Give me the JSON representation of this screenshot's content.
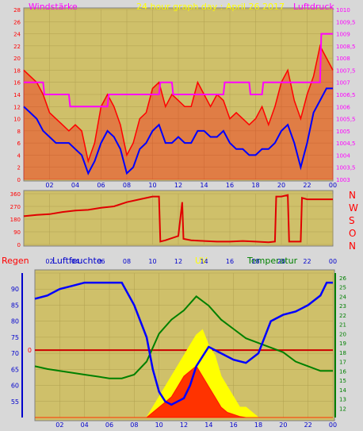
{
  "header": {
    "left_label": "Windstärke",
    "center_label": "24 hour graph day : April 26 2017",
    "right_label": "Luftdruck"
  },
  "compass": {
    "letters": [
      "N",
      "W",
      "S",
      "O",
      "N"
    ]
  },
  "bottom_header": {
    "rain": "Regen",
    "humidity": "Luftfeuchte",
    "uv": "UV",
    "temperature": "Temperatur"
  },
  "colors": {
    "panel": "#c8b860",
    "wind_gust": "#ff0000",
    "wind_avg": "#0000ff",
    "pressure": "#ff00ff",
    "direction": "#e00000",
    "humidity": "#0000ff",
    "temperature": "#008000",
    "uv": "#ffff00",
    "rain": "#ff0000",
    "rain_zero_line": "#cc0000"
  },
  "chart_data": [
    {
      "type": "line",
      "title": "24 hour graph day : April 26 2017",
      "ylabel": "Windstärke",
      "y2label": "Luftdruck",
      "ylim": [
        0,
        28
      ],
      "y_ticks": [
        "0",
        "2",
        "4",
        "6",
        "8",
        "10",
        "12",
        "14",
        "16",
        "18",
        "20",
        "22",
        "24",
        "26",
        "28"
      ],
      "y2lim": [
        1003,
        1010
      ],
      "y2_ticks": [
        "1003",
        "1003,5",
        "1004",
        "1004,5",
        "1005",
        "1005,5",
        "1006",
        "1006,5",
        "1007",
        "1007,5",
        "1008",
        "1008,5",
        "1009",
        "1009,5",
        "1010"
      ],
      "x_ticks": [
        "02",
        "04",
        "06",
        "08",
        "10",
        "12",
        "14",
        "16",
        "18",
        "20",
        "22",
        "00"
      ],
      "series": [
        {
          "name": "Windstärke",
          "style": "gust",
          "x": [
            0,
            0.5,
            1,
            1.5,
            2,
            2.5,
            3,
            3.5,
            4,
            4.5,
            5,
            5.5,
            6,
            6.5,
            7,
            7.5,
            8,
            8.5,
            9,
            9.5,
            10,
            10.5,
            11,
            11.5,
            12,
            12.5,
            13,
            13.5,
            14,
            14.5,
            15,
            15.5,
            16,
            16.5,
            17,
            17.5,
            18,
            18.5,
            19,
            19.5,
            20,
            20.5,
            21,
            21.5,
            22,
            22.5,
            23,
            23.5,
            24
          ],
          "values": [
            18,
            17,
            16,
            14,
            11,
            10,
            9,
            8,
            9,
            8,
            3,
            6,
            12,
            14,
            12,
            9,
            4,
            6,
            10,
            11,
            15,
            16,
            12,
            14,
            13,
            12,
            12,
            16,
            14,
            12,
            14,
            13,
            10,
            11,
            10,
            9,
            10,
            12,
            9,
            12,
            16,
            18,
            13,
            10,
            14,
            17,
            22,
            20,
            18
          ]
        },
        {
          "name": "Windstärke Mittel",
          "style": "avg",
          "x": [
            0,
            0.5,
            1,
            1.5,
            2,
            2.5,
            3,
            3.5,
            4,
            4.5,
            5,
            5.5,
            6,
            6.5,
            7,
            7.5,
            8,
            8.5,
            9,
            9.5,
            10,
            10.5,
            11,
            11.5,
            12,
            12.5,
            13,
            13.5,
            14,
            14.5,
            15,
            15.5,
            16,
            16.5,
            17,
            17.5,
            18,
            18.5,
            19,
            19.5,
            20,
            20.5,
            21,
            21.5,
            22,
            22.5,
            23,
            23.5,
            24
          ],
          "values": [
            12,
            11,
            10,
            8,
            7,
            6,
            6,
            6,
            5,
            4,
            1,
            3,
            6,
            8,
            7,
            5,
            1,
            2,
            5,
            6,
            8,
            9,
            6,
            6,
            7,
            6,
            6,
            8,
            8,
            7,
            7,
            8,
            6,
            5,
            5,
            4,
            4,
            5,
            5,
            6,
            8,
            9,
            6,
            2,
            6,
            11,
            13,
            15,
            15
          ]
        },
        {
          "name": "Luftdruck",
          "axis": "right",
          "x": [
            0,
            1.5,
            1.6,
            3.5,
            3.6,
            6.5,
            6.6,
            10.5,
            10.6,
            11.5,
            11.6,
            15.5,
            15.6,
            17.5,
            17.6,
            18.5,
            18.6,
            23,
            23.1,
            24
          ],
          "values": [
            1007,
            1007,
            1006.5,
            1006.5,
            1006,
            1006,
            1006.5,
            1006.5,
            1007,
            1007,
            1006.5,
            1006.5,
            1007,
            1007,
            1006.5,
            1006.5,
            1007,
            1007,
            1009,
            1009
          ]
        }
      ]
    },
    {
      "type": "line",
      "title": "",
      "ylabel": "",
      "ylim": [
        0,
        360
      ],
      "y_ticks": [
        "0",
        "90",
        "180",
        "270",
        "360"
      ],
      "x_ticks": [
        "02",
        "04",
        "06",
        "08",
        "10",
        "12",
        "14",
        "16",
        "18",
        "20",
        "22",
        "00"
      ],
      "series": [
        {
          "name": "Windrichtung",
          "x": [
            0,
            1,
            2,
            3,
            4,
            5,
            6,
            7,
            8,
            9,
            10,
            10.5,
            10.6,
            11,
            12,
            12.3,
            12.4,
            13,
            14,
            15,
            16,
            17,
            18,
            19,
            19.5,
            19.6,
            20,
            20.5,
            20.6,
            21,
            21.5,
            21.6,
            22,
            23,
            24
          ],
          "values": [
            200,
            210,
            215,
            230,
            240,
            245,
            260,
            270,
            300,
            320,
            340,
            340,
            20,
            30,
            60,
            300,
            40,
            30,
            25,
            20,
            20,
            25,
            20,
            15,
            20,
            340,
            340,
            350,
            20,
            20,
            20,
            330,
            320,
            320,
            320
          ]
        }
      ]
    },
    {
      "type": "line",
      "title": "",
      "ylabel": "Luftfeuchte",
      "y2label": "Temperatur",
      "ylim": [
        50,
        95
      ],
      "y_ticks": [
        "55",
        "60",
        "65",
        "70",
        "75",
        "80",
        "85",
        "90"
      ],
      "y2lim": [
        11,
        26.5
      ],
      "y2_ticks": [
        "12",
        "13",
        "14",
        "15",
        "16",
        "17",
        "18",
        "19",
        "20",
        "21",
        "22",
        "23",
        "24",
        "25",
        "26"
      ],
      "rain_ticks": [
        "0"
      ],
      "x_ticks": [
        "02",
        "04",
        "06",
        "08",
        "10",
        "12",
        "14",
        "16",
        "18",
        "20",
        "22",
        "00"
      ],
      "series": [
        {
          "name": "Luftfeuchte",
          "axis": "left",
          "x": [
            0,
            1,
            2,
            3,
            4,
            5,
            6,
            7,
            8,
            9,
            9.5,
            10,
            10.5,
            11,
            12,
            12.5,
            13,
            14,
            15,
            16,
            17,
            18,
            19,
            20,
            21,
            22,
            23,
            23.5,
            24
          ],
          "values": [
            87,
            88,
            90,
            91,
            92,
            92,
            92,
            92,
            85,
            75,
            65,
            58,
            55,
            54,
            56,
            60,
            66,
            72,
            70,
            68,
            67,
            70,
            80,
            82,
            83,
            85,
            88,
            92,
            92
          ]
        },
        {
          "name": "Temperatur",
          "axis": "right",
          "x": [
            0,
            1,
            2,
            3,
            4,
            5,
            6,
            7,
            8,
            9,
            10,
            11,
            12,
            13,
            14,
            15,
            16,
            17,
            18,
            19,
            20,
            21,
            22,
            23,
            24
          ],
          "values": [
            16.5,
            16.2,
            16,
            15.8,
            15.6,
            15.4,
            15.2,
            15.2,
            15.6,
            17,
            20,
            21.5,
            22.5,
            24,
            23,
            21.5,
            20.5,
            19.5,
            19,
            18.5,
            18,
            17,
            16.5,
            16,
            16
          ]
        },
        {
          "name": "UV",
          "x": [
            0,
            9,
            9.5,
            10,
            10.5,
            11,
            11.5,
            12,
            12.5,
            13,
            13.5,
            14,
            14.5,
            15,
            15.5,
            16,
            16.5,
            17,
            17.5,
            18,
            24
          ],
          "values": [
            0,
            0,
            1,
            2,
            3,
            4,
            5,
            6,
            7,
            8,
            8.5,
            7,
            6,
            4,
            3,
            2,
            1,
            1,
            0.5,
            0,
            0
          ]
        },
        {
          "name": "Regen",
          "x": [
            0,
            9,
            9.5,
            10,
            10.5,
            11,
            11.5,
            12,
            12.5,
            13,
            13.5,
            14,
            14.5,
            15,
            15.5,
            16,
            16.5,
            17,
            24
          ],
          "values": [
            0,
            0,
            0.5,
            1,
            1.5,
            2,
            3,
            4,
            4.5,
            5,
            4,
            3,
            2,
            1,
            0.5,
            0.3,
            0.1,
            0,
            0
          ]
        }
      ]
    }
  ]
}
